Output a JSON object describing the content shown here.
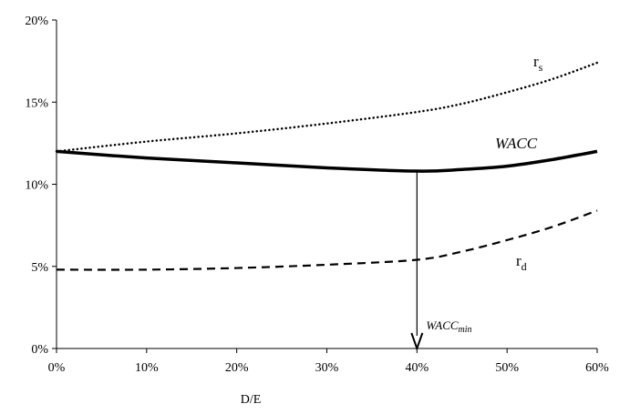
{
  "chart_data": {
    "type": "line",
    "title": "",
    "xlabel": "D/E",
    "ylabel": "",
    "x_ticks": [
      "0%",
      "10%",
      "20%",
      "30%",
      "40%",
      "50%",
      "60%"
    ],
    "y_ticks": [
      "0%",
      "5%",
      "10%",
      "15%",
      "20%"
    ],
    "xlim": [
      0,
      60
    ],
    "ylim": [
      0,
      20
    ],
    "grid": false,
    "legend": "none",
    "x": [
      0,
      10,
      20,
      30,
      40,
      45,
      50,
      55,
      60
    ],
    "series": [
      {
        "id": "rs",
        "label_main": "r",
        "label_sub": "s",
        "style": "dotted",
        "color": "#000000",
        "values": [
          12.0,
          12.6,
          13.1,
          13.7,
          14.4,
          14.9,
          15.6,
          16.4,
          17.4
        ]
      },
      {
        "id": "wacc",
        "label_main": "WACC",
        "label_sub": "",
        "style": "solid",
        "color": "#000000",
        "values": [
          12.0,
          11.6,
          11.3,
          11.0,
          10.8,
          10.9,
          11.1,
          11.5,
          12.0
        ]
      },
      {
        "id": "rd",
        "label_main": "r",
        "label_sub": "d",
        "style": "dashed",
        "color": "#000000",
        "values": [
          4.8,
          4.8,
          4.9,
          5.1,
          5.4,
          5.9,
          6.6,
          7.4,
          8.4
        ]
      }
    ],
    "annotation": {
      "label_main": "WACC",
      "label_sub": "min",
      "x": 40,
      "y_from": 10.8,
      "y_to": 0
    }
  }
}
